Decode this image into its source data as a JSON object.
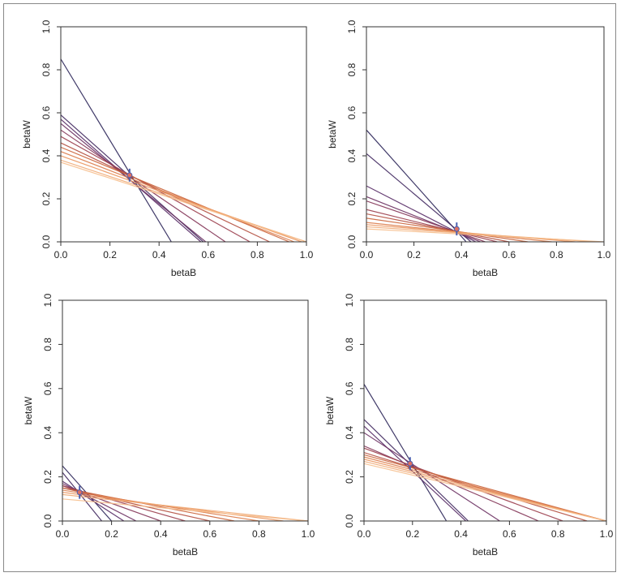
{
  "chart_data": [
    {
      "type": "line",
      "xlabel": "betaB",
      "ylabel": "betaW",
      "xlim": [
        0,
        1
      ],
      "ylim": [
        0,
        1
      ],
      "xticks": [
        "0.0",
        "0.2",
        "0.4",
        "0.6",
        "0.8",
        "1.0"
      ],
      "yticks": [
        "0.0",
        "0.2",
        "0.4",
        "0.6",
        "0.8",
        "1.0"
      ],
      "tomography_lines": [
        [
          0.85,
          0.45
        ],
        [
          0.59,
          0.58
        ],
        [
          0.57,
          0.57
        ],
        [
          0.55,
          0.59
        ],
        [
          0.52,
          0.67
        ],
        [
          0.49,
          0.77
        ],
        [
          0.46,
          0.85
        ],
        [
          0.44,
          0.93
        ],
        [
          0.42,
          0.95
        ],
        [
          0.4,
          0.98
        ],
        [
          0.38,
          1.0
        ],
        [
          0.37,
          1.0
        ]
      ],
      "intersection": [
        0.28,
        0.31
      ]
    },
    {
      "type": "line",
      "xlabel": "betaB",
      "ylabel": "betaW",
      "xlim": [
        0,
        1
      ],
      "ylim": [
        0,
        1
      ],
      "xticks": [
        "0.0",
        "0.2",
        "0.4",
        "0.6",
        "0.8",
        "1.0"
      ],
      "yticks": [
        "0.0",
        "0.2",
        "0.4",
        "0.6",
        "0.8",
        "1.0"
      ],
      "tomography_lines": [
        [
          0.52,
          0.42
        ],
        [
          0.41,
          0.44
        ],
        [
          0.26,
          0.46
        ],
        [
          0.21,
          0.48
        ],
        [
          0.19,
          0.5
        ],
        [
          0.15,
          0.55
        ],
        [
          0.13,
          0.6
        ],
        [
          0.11,
          0.68
        ],
        [
          0.09,
          0.78
        ],
        [
          0.08,
          0.88
        ],
        [
          0.07,
          0.96
        ],
        [
          0.06,
          1.0
        ]
      ],
      "intersection": [
        0.38,
        0.06
      ]
    },
    {
      "type": "line",
      "xlabel": "betaB",
      "ylabel": "betaW",
      "xlim": [
        0,
        1
      ],
      "ylim": [
        0,
        1
      ],
      "xticks": [
        "0.0",
        "0.2",
        "0.4",
        "0.6",
        "0.8",
        "1.0"
      ],
      "yticks": [
        "0.0",
        "0.2",
        "0.4",
        "0.6",
        "0.8",
        "1.0"
      ],
      "tomography_lines": [
        [
          0.25,
          0.2
        ],
        [
          0.22,
          0.16
        ],
        [
          0.18,
          0.25
        ],
        [
          0.17,
          0.3
        ],
        [
          0.16,
          0.4
        ],
        [
          0.16,
          0.5
        ],
        [
          0.15,
          0.6
        ],
        [
          0.15,
          0.7
        ],
        [
          0.14,
          0.8
        ],
        [
          0.13,
          0.9
        ],
        [
          0.12,
          1.0
        ],
        [
          0.1,
          1.0
        ]
      ],
      "intersection": [
        0.07,
        0.13
      ]
    },
    {
      "type": "line",
      "xlabel": "betaB",
      "ylabel": "betaW",
      "xlim": [
        0,
        1
      ],
      "ylim": [
        0,
        1
      ],
      "xticks": [
        "0.0",
        "0.2",
        "0.4",
        "0.6",
        "0.8",
        "1.0"
      ],
      "yticks": [
        "0.0",
        "0.2",
        "0.4",
        "0.6",
        "0.8",
        "1.0"
      ],
      "tomography_lines": [
        [
          0.62,
          0.34
        ],
        [
          0.46,
          0.43
        ],
        [
          0.43,
          0.42
        ],
        [
          0.4,
          0.56
        ],
        [
          0.34,
          0.72
        ],
        [
          0.33,
          0.82
        ],
        [
          0.31,
          0.92
        ],
        [
          0.3,
          1.0
        ],
        [
          0.29,
          1.0
        ],
        [
          0.28,
          1.0
        ],
        [
          0.27,
          1.0
        ],
        [
          0.26,
          1.0
        ]
      ],
      "intersection": [
        0.19,
        0.26
      ]
    }
  ]
}
